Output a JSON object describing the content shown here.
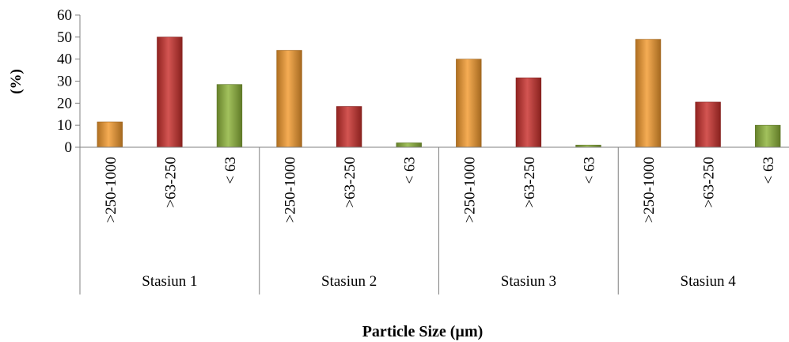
{
  "chart_data": {
    "type": "bar",
    "xlabel": "Particle Size (µm)",
    "ylabel": "(%)",
    "ylim": [
      0,
      60
    ],
    "yticks": [
      0,
      10,
      20,
      30,
      40,
      50,
      60
    ],
    "grid": false,
    "legend": "none",
    "groups": [
      {
        "label": "Stasiun 1",
        "bars": [
          {
            "category": ">250-1000",
            "value": 11.5,
            "color": "#F39A2E"
          },
          {
            "category": ">63-250",
            "value": 50,
            "color": "#C9302C"
          },
          {
            "category": "< 63",
            "value": 28.5,
            "color": "#8DB33A"
          }
        ]
      },
      {
        "label": "Stasiun 2",
        "bars": [
          {
            "category": ">250-1000",
            "value": 44,
            "color": "#F39A2E"
          },
          {
            "category": ">63-250",
            "value": 18.5,
            "color": "#C9302C"
          },
          {
            "category": "< 63",
            "value": 2,
            "color": "#8DB33A"
          }
        ]
      },
      {
        "label": "Stasiun 3",
        "bars": [
          {
            "category": ">250-1000",
            "value": 40,
            "color": "#F39A2E"
          },
          {
            "category": ">63-250",
            "value": 31.5,
            "color": "#C9302C"
          },
          {
            "category": "< 63",
            "value": 1,
            "color": "#8DB33A"
          }
        ]
      },
      {
        "label": "Stasiun 4",
        "bars": [
          {
            "category": ">250-1000",
            "value": 49,
            "color": "#F39A2E"
          },
          {
            "category": ">63-250",
            "value": 20.5,
            "color": "#C9302C"
          },
          {
            "category": "< 63",
            "value": 10,
            "color": "#8DB33A"
          }
        ]
      }
    ]
  }
}
